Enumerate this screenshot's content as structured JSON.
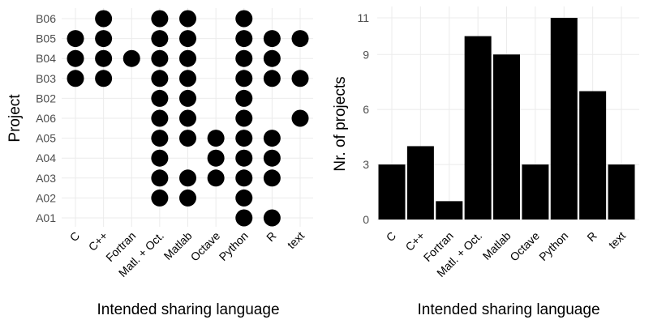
{
  "colors": {
    "highlight": "#1a7fb0",
    "mark": "#000000",
    "grid": "#ebebeb"
  },
  "chart_data": [
    {
      "type": "scatter",
      "xlabel": "Intended sharing language",
      "ylabel": "Project",
      "categories": [
        "C",
        "C++",
        "Fortran",
        "Matl. + Oct.",
        "Matlab",
        "Octave",
        "Python",
        "R",
        "text"
      ],
      "highlight_category": "Matl. + Oct.",
      "projects": [
        "A01",
        "A02",
        "A03",
        "A04",
        "A05",
        "A06",
        "B02",
        "B03",
        "B04",
        "B05",
        "B06"
      ],
      "points": {
        "B06": [
          "C++",
          "Matl. + Oct.",
          "Matlab",
          "Python"
        ],
        "B05": [
          "C",
          "C++",
          "Matl. + Oct.",
          "Matlab",
          "Python",
          "R",
          "text"
        ],
        "B04": [
          "C",
          "C++",
          "Fortran",
          "Matl. + Oct.",
          "Matlab",
          "Python",
          "R"
        ],
        "B03": [
          "C",
          "C++",
          "Matl. + Oct.",
          "Matlab",
          "Python",
          "R",
          "text"
        ],
        "B02": [
          "Matl. + Oct.",
          "Matlab",
          "Python"
        ],
        "A06": [
          "Matl. + Oct.",
          "Matlab",
          "Python",
          "text"
        ],
        "A05": [
          "Matl. + Oct.",
          "Matlab",
          "Octave",
          "Python",
          "R"
        ],
        "A04": [
          "Matl. + Oct.",
          "Octave",
          "Python",
          "R"
        ],
        "A03": [
          "Matl. + Oct.",
          "Matlab",
          "Octave",
          "Python",
          "R"
        ],
        "A02": [
          "Matl. + Oct.",
          "Matlab",
          "Python"
        ],
        "A01": [
          "Python",
          "R"
        ]
      },
      "grid": true
    },
    {
      "type": "bar",
      "xlabel": "Intended sharing language",
      "ylabel": "Nr. of projects",
      "categories": [
        "C",
        "C++",
        "Fortran",
        "Matl. + Oct.",
        "Matlab",
        "Octave",
        "Python",
        "R",
        "text"
      ],
      "highlight_category": "Matl. + Oct.",
      "values": [
        3,
        4,
        1,
        10,
        9,
        3,
        11,
        7,
        3
      ],
      "yticks": [
        0,
        3,
        6,
        9,
        11
      ],
      "ylim": [
        0,
        11.55
      ],
      "grid": true
    }
  ]
}
